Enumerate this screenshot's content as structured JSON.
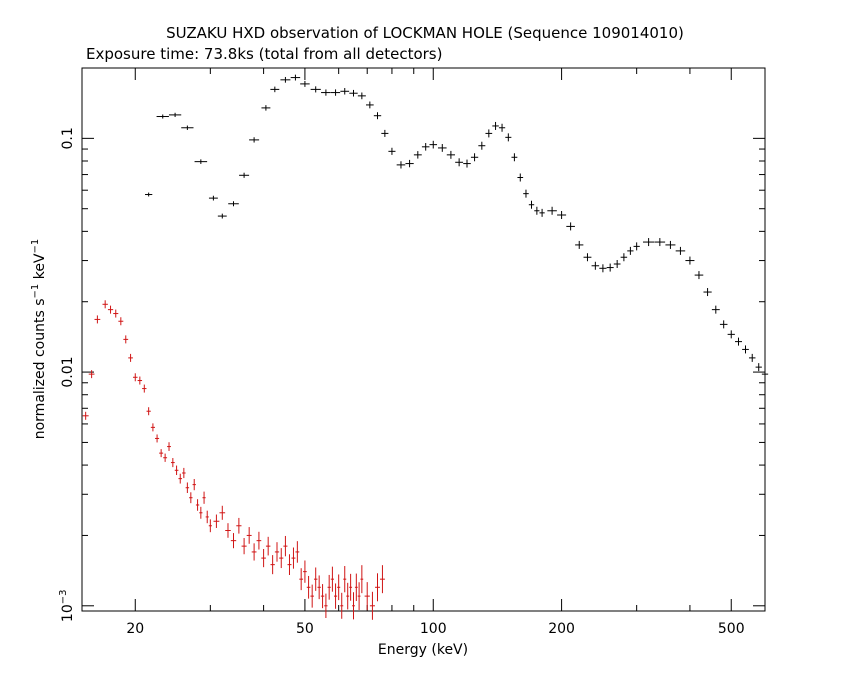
{
  "chart_data": {
    "type": "scatter",
    "title": "SUZAKU HXD observation of LOCKMAN HOLE (Sequence 109014010)",
    "subtitle": "Exposure time: 73.8ks (total from all detectors)",
    "xlabel": "Energy (keV)",
    "ylabel": {
      "base": "normalized counts s",
      "sup1": "−1",
      "mid": " keV",
      "sup2": "−1"
    },
    "x_scale": "log",
    "y_scale": "log",
    "xlim": [
      15,
      600
    ],
    "ylim": [
      0.00095,
      0.2
    ],
    "x_ticks": [
      {
        "value": 20,
        "label": "20"
      },
      {
        "value": 50,
        "label": "50"
      },
      {
        "value": 100,
        "label": "100"
      },
      {
        "value": 200,
        "label": "200"
      },
      {
        "value": 500,
        "label": "500"
      }
    ],
    "y_ticks": [
      {
        "value": 0.1,
        "label": "0.1"
      },
      {
        "value": 0.01,
        "label": "0.01"
      },
      {
        "value": 0.001,
        "label_base": "10",
        "label_sup": "−3"
      }
    ],
    "grid": false,
    "series": [
      {
        "color": "#000000",
        "points": [
          [
            21.5,
            0.0575
          ],
          [
            23.2,
            0.124
          ],
          [
            24.8,
            0.126
          ],
          [
            26.5,
            0.111
          ],
          [
            28.5,
            0.0795
          ],
          [
            30.5,
            0.0555
          ],
          [
            32.0,
            0.0465
          ],
          [
            34.0,
            0.0525
          ],
          [
            36.0,
            0.0695
          ],
          [
            38.0,
            0.0985
          ],
          [
            40.5,
            0.135
          ],
          [
            42.5,
            0.162
          ],
          [
            45.0,
            0.178
          ],
          [
            47.5,
            0.182
          ],
          [
            50.0,
            0.171
          ],
          [
            53.0,
            0.162
          ],
          [
            56.0,
            0.157
          ],
          [
            59.0,
            0.157
          ],
          [
            62.0,
            0.159
          ],
          [
            65.0,
            0.156
          ],
          [
            68.0,
            0.152
          ],
          [
            71.0,
            0.139
          ],
          [
            74.0,
            0.125
          ],
          [
            77.0,
            0.105
          ],
          [
            80.0,
            0.088
          ],
          [
            84.0,
            0.077
          ],
          [
            88.0,
            0.078
          ],
          [
            92.0,
            0.085
          ],
          [
            96.0,
            0.092
          ],
          [
            100.0,
            0.094
          ],
          [
            105.0,
            0.091
          ],
          [
            110.0,
            0.085
          ],
          [
            115.0,
            0.079
          ],
          [
            120.0,
            0.078
          ],
          [
            125.0,
            0.083
          ],
          [
            130.0,
            0.093
          ],
          [
            135.0,
            0.105
          ],
          [
            140.0,
            0.113
          ],
          [
            145.0,
            0.111
          ],
          [
            150.0,
            0.101
          ],
          [
            155.0,
            0.083
          ],
          [
            160.0,
            0.068
          ],
          [
            165.0,
            0.058
          ],
          [
            170.0,
            0.052
          ],
          [
            175.0,
            0.049
          ],
          [
            180.0,
            0.048
          ],
          [
            190.0,
            0.049
          ],
          [
            200.0,
            0.047
          ],
          [
            210.0,
            0.042
          ],
          [
            220.0,
            0.035
          ],
          [
            230.0,
            0.031
          ],
          [
            240.0,
            0.0285
          ],
          [
            250.0,
            0.0278
          ],
          [
            260.0,
            0.028
          ],
          [
            270.0,
            0.029
          ],
          [
            280.0,
            0.031
          ],
          [
            290.0,
            0.033
          ],
          [
            300.0,
            0.0345
          ],
          [
            320.0,
            0.036
          ],
          [
            340.0,
            0.036
          ],
          [
            360.0,
            0.035
          ],
          [
            380.0,
            0.033
          ],
          [
            400.0,
            0.03
          ],
          [
            420.0,
            0.026
          ],
          [
            440.0,
            0.022
          ],
          [
            460.0,
            0.0185
          ],
          [
            480.0,
            0.016
          ],
          [
            500.0,
            0.0145
          ],
          [
            520.0,
            0.0135
          ],
          [
            540.0,
            0.0125
          ],
          [
            560.0,
            0.0115
          ],
          [
            580.0,
            0.0105
          ],
          [
            600.0,
            0.0098
          ]
        ]
      },
      {
        "color": "#d01414",
        "points": [
          [
            15.3,
            0.0065
          ],
          [
            15.8,
            0.0098
          ],
          [
            16.3,
            0.0168
          ],
          [
            17.0,
            0.0195
          ],
          [
            17.5,
            0.0185
          ],
          [
            18.0,
            0.0178
          ],
          [
            18.5,
            0.0165
          ],
          [
            19.0,
            0.0138
          ],
          [
            19.5,
            0.0115
          ],
          [
            20.0,
            0.0095
          ],
          [
            20.5,
            0.0092
          ],
          [
            21.0,
            0.0085
          ],
          [
            21.5,
            0.0068
          ],
          [
            22.0,
            0.0058
          ],
          [
            22.5,
            0.0052
          ],
          [
            23.0,
            0.0045
          ],
          [
            23.5,
            0.0043
          ],
          [
            24.0,
            0.0048
          ],
          [
            24.5,
            0.0041
          ],
          [
            25.0,
            0.0038
          ],
          [
            25.5,
            0.0035
          ],
          [
            26.0,
            0.0037
          ],
          [
            26.5,
            0.0032
          ],
          [
            27.0,
            0.0029
          ],
          [
            27.5,
            0.0033
          ],
          [
            28.0,
            0.0027
          ],
          [
            28.5,
            0.0025
          ],
          [
            29.0,
            0.0029
          ],
          [
            29.5,
            0.0024
          ],
          [
            30.0,
            0.0022
          ],
          [
            31.0,
            0.0023
          ],
          [
            32.0,
            0.0025
          ],
          [
            33.0,
            0.0021
          ],
          [
            34.0,
            0.0019
          ],
          [
            35.0,
            0.0022
          ],
          [
            36.0,
            0.0018
          ],
          [
            37.0,
            0.002
          ],
          [
            38.0,
            0.0017
          ],
          [
            39.0,
            0.0019
          ],
          [
            40.0,
            0.0016
          ],
          [
            41.0,
            0.0018
          ],
          [
            42.0,
            0.0015
          ],
          [
            43.0,
            0.0017
          ],
          [
            44.0,
            0.0016
          ],
          [
            45.0,
            0.0018
          ],
          [
            46.0,
            0.0015
          ],
          [
            47.0,
            0.0016
          ],
          [
            48.0,
            0.0017
          ],
          [
            49.0,
            0.0013
          ],
          [
            50.0,
            0.0014
          ],
          [
            51.0,
            0.0012
          ],
          [
            52.0,
            0.0011
          ],
          [
            53.0,
            0.0013
          ],
          [
            54.0,
            0.0012
          ],
          [
            55.0,
            0.0011
          ],
          [
            56.0,
            0.001
          ],
          [
            57.0,
            0.0012
          ],
          [
            58.0,
            0.0013
          ],
          [
            59.0,
            0.0011
          ],
          [
            60.0,
            0.0012
          ],
          [
            61.0,
            0.001
          ],
          [
            62.0,
            0.0013
          ],
          [
            63.0,
            0.0011
          ],
          [
            64.0,
            0.0012
          ],
          [
            65.0,
            0.001
          ],
          [
            66.0,
            0.0012
          ],
          [
            67.0,
            0.0011
          ],
          [
            68.0,
            0.0013
          ],
          [
            70.0,
            0.0011
          ],
          [
            72.0,
            0.001
          ],
          [
            74.0,
            0.0012
          ],
          [
            76.0,
            0.0013
          ]
        ]
      }
    ]
  }
}
